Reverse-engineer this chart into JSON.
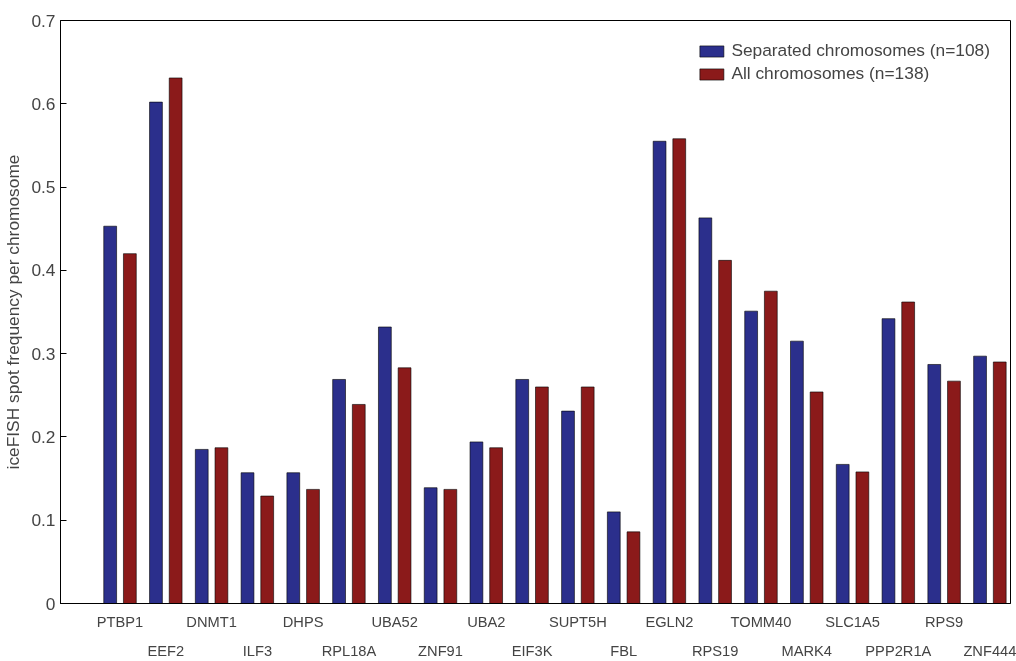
{
  "chart_data": {
    "type": "bar",
    "ylabel": "iceFISH spot frequency per chromosome",
    "categories": [
      "PTBP1",
      "EEF2",
      "DNMT1",
      "ILF3",
      "DHPS",
      "RPL18A",
      "UBA52",
      "ZNF91",
      "UBA2",
      "EIF3K",
      "SUPT5H",
      "FBL",
      "EGLN2",
      "RPS19",
      "TOMM40",
      "MARK4",
      "SLC1A5",
      "PPP2R1A",
      "RPS9",
      "ZNF444"
    ],
    "series": [
      {
        "name": "Separated chromosomes (n=108)",
        "color": "#2b2f8c",
        "values": [
          0.453,
          0.602,
          0.185,
          0.157,
          0.157,
          0.269,
          0.332,
          0.139,
          0.194,
          0.269,
          0.231,
          0.11,
          0.555,
          0.463,
          0.351,
          0.315,
          0.167,
          0.342,
          0.287,
          0.297
        ]
      },
      {
        "name": "All chromosomes (n=138)",
        "color": "#8b1a1a",
        "values": [
          0.42,
          0.631,
          0.187,
          0.129,
          0.137,
          0.239,
          0.283,
          0.137,
          0.187,
          0.26,
          0.26,
          0.086,
          0.558,
          0.412,
          0.375,
          0.254,
          0.158,
          0.362,
          0.267,
          0.29
        ]
      }
    ],
    "ylim": [
      0,
      0.7
    ],
    "yticks": [
      0,
      0.1,
      0.2,
      0.3,
      0.4,
      0.5,
      0.6,
      0.7
    ],
    "grid": false,
    "legend": "top right"
  }
}
